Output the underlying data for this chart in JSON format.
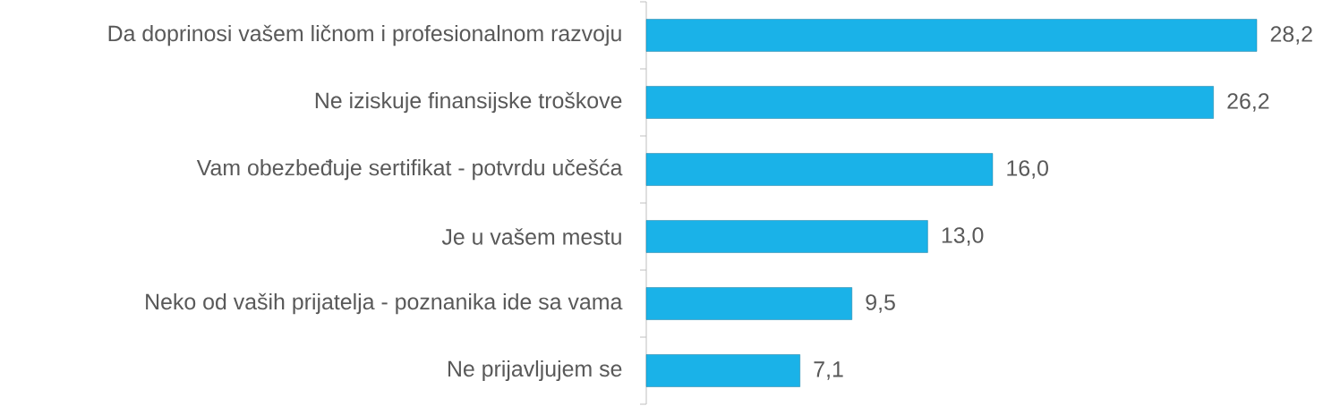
{
  "chart_data": {
    "type": "bar",
    "orientation": "horizontal",
    "categories": [
      "Da doprinosi vašem ličnom i profesionalnom razvoju",
      "Ne iziskuje finansijske troškove",
      "Vam obezbeđuje sertifikat - potvrdu učešća",
      "Je u vašem mestu",
      "Neko od vaših prijatelja - poznanika ide sa vama",
      "Ne prijavljujem se"
    ],
    "values": [
      28.2,
      26.2,
      16.0,
      13.0,
      9.5,
      7.1
    ],
    "value_labels": [
      "28,2",
      "26,2",
      "16,0",
      "13,0",
      "9,5",
      "7,1"
    ],
    "color": "#1ab2e8"
  }
}
